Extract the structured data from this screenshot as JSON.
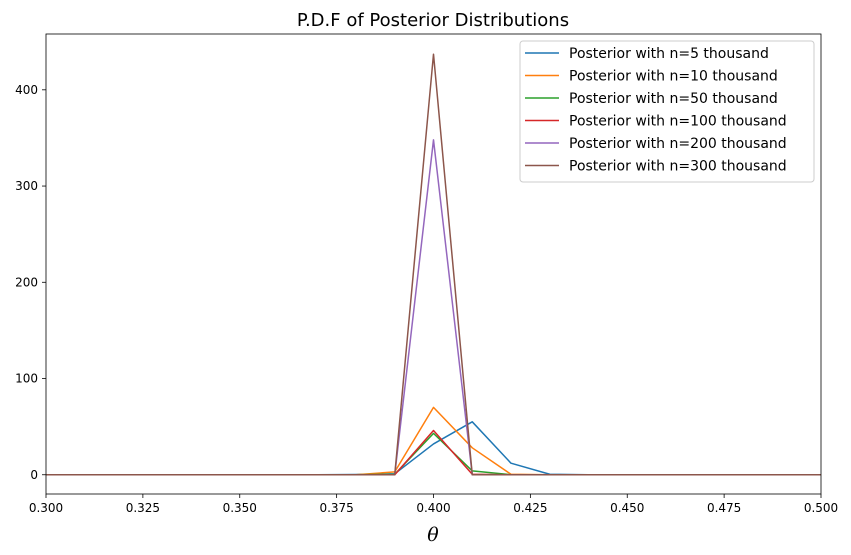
{
  "chart_data": {
    "type": "line",
    "title": "P.D.F of Posterior Distributions",
    "xlabel": "θ",
    "ylabel": "",
    "xlim": [
      0.3,
      0.5
    ],
    "ylim": [
      -20,
      458
    ],
    "xticks": [
      0.3,
      0.325,
      0.35,
      0.375,
      0.4,
      0.425,
      0.45,
      0.475,
      0.5
    ],
    "xtick_labels": [
      "0.300",
      "0.325",
      "0.350",
      "0.375",
      "0.400",
      "0.425",
      "0.450",
      "0.475",
      "0.500"
    ],
    "yticks": [
      0,
      100,
      200,
      300,
      400
    ],
    "ytick_labels": [
      "0",
      "100",
      "200",
      "300",
      "400"
    ],
    "grid": false,
    "legend_position": "top-right",
    "series": [
      {
        "name": "Posterior with n=5 thousand",
        "color": "#1f77b4",
        "x": [
          0.3,
          0.31,
          0.32,
          0.33,
          0.34,
          0.35,
          0.36,
          0.37,
          0.38,
          0.39,
          0.4,
          0.41,
          0.42,
          0.43,
          0.44,
          0.45,
          0.46,
          0.47,
          0.48,
          0.49,
          0.5
        ],
        "y": [
          0,
          0,
          0,
          0,
          0,
          0,
          0,
          0,
          0.2,
          1,
          32,
          55,
          12,
          0.5,
          0,
          0,
          0,
          0,
          0,
          0,
          0
        ]
      },
      {
        "name": "Posterior with n=10 thousand",
        "color": "#ff7f0e",
        "x": [
          0.3,
          0.31,
          0.32,
          0.33,
          0.34,
          0.35,
          0.36,
          0.37,
          0.38,
          0.39,
          0.4,
          0.41,
          0.42,
          0.43,
          0.44,
          0.45,
          0.46,
          0.47,
          0.48,
          0.49,
          0.5
        ],
        "y": [
          0,
          0,
          0,
          0,
          0,
          0,
          0,
          0,
          0,
          3,
          70,
          28,
          0.5,
          0,
          0,
          0,
          0,
          0,
          0,
          0,
          0
        ]
      },
      {
        "name": "Posterior with n=50 thousand",
        "color": "#2ca02c",
        "x": [
          0.3,
          0.31,
          0.32,
          0.33,
          0.34,
          0.35,
          0.36,
          0.37,
          0.38,
          0.39,
          0.4,
          0.41,
          0.42,
          0.43,
          0.44,
          0.45,
          0.46,
          0.47,
          0.48,
          0.49,
          0.5
        ],
        "y": [
          0,
          0,
          0,
          0,
          0,
          0,
          0,
          0,
          0,
          0.5,
          43,
          4,
          0,
          0,
          0,
          0,
          0,
          0,
          0,
          0,
          0
        ]
      },
      {
        "name": "Posterior with n=100 thousand",
        "color": "#d62728",
        "x": [
          0.3,
          0.31,
          0.32,
          0.33,
          0.34,
          0.35,
          0.36,
          0.37,
          0.38,
          0.39,
          0.4,
          0.41,
          0.42,
          0.43,
          0.44,
          0.45,
          0.46,
          0.47,
          0.48,
          0.49,
          0.5
        ],
        "y": [
          0,
          0,
          0,
          0,
          0,
          0,
          0,
          0,
          0,
          0,
          46,
          0.5,
          0,
          0,
          0,
          0,
          0,
          0,
          0,
          0,
          0
        ]
      },
      {
        "name": "Posterior with n=200 thousand",
        "color": "#9467bd",
        "x": [
          0.3,
          0.31,
          0.32,
          0.33,
          0.34,
          0.35,
          0.36,
          0.37,
          0.38,
          0.39,
          0.4,
          0.41,
          0.42,
          0.43,
          0.44,
          0.45,
          0.46,
          0.47,
          0.48,
          0.49,
          0.5
        ],
        "y": [
          0,
          0,
          0,
          0,
          0,
          0,
          0,
          0,
          0,
          0,
          348,
          0,
          0,
          0,
          0,
          0,
          0,
          0,
          0,
          0,
          0
        ]
      },
      {
        "name": "Posterior with n=300 thousand",
        "color": "#8c564b",
        "x": [
          0.3,
          0.31,
          0.32,
          0.33,
          0.34,
          0.35,
          0.36,
          0.37,
          0.38,
          0.39,
          0.4,
          0.41,
          0.42,
          0.43,
          0.44,
          0.45,
          0.46,
          0.47,
          0.48,
          0.49,
          0.5
        ],
        "y": [
          0,
          0,
          0,
          0,
          0,
          0,
          0,
          0,
          0,
          0,
          437,
          0,
          0,
          0,
          0,
          0,
          0,
          0,
          0,
          0,
          0
        ]
      }
    ]
  }
}
